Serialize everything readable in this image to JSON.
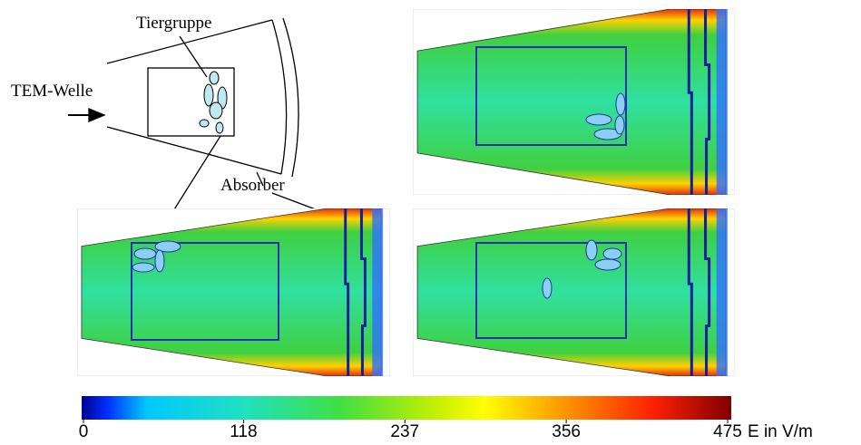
{
  "diagram": {
    "labels": {
      "animal_group": "Tiergruppe",
      "wave": "TEM-Welle",
      "absorber": "Absorber"
    }
  },
  "colorbar": {
    "label": "E in V/m",
    "lim": [
      0,
      475
    ],
    "ticks": [
      0,
      118,
      237,
      356,
      475
    ]
  }
}
